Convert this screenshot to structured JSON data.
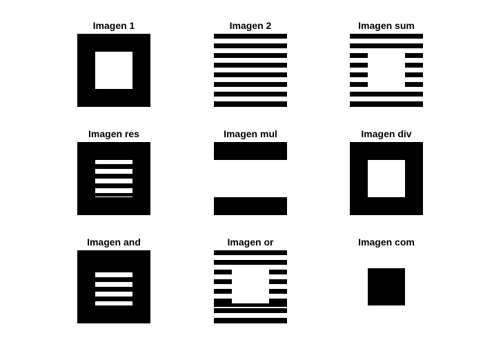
{
  "figure": {
    "background": "#ffffff",
    "colormap": [
      "#000000",
      "#ffffff"
    ]
  },
  "panels": [
    {
      "title": "Imagen 1"
    },
    {
      "title": "Imagen 2"
    },
    {
      "title": "Imagen sum"
    },
    {
      "title": "Imagen res"
    },
    {
      "title": "Imagen mul"
    },
    {
      "title": "Imagen div"
    },
    {
      "title": "Imagen and"
    },
    {
      "title": "Imagen or"
    },
    {
      "title": "Imagen com"
    }
  ]
}
